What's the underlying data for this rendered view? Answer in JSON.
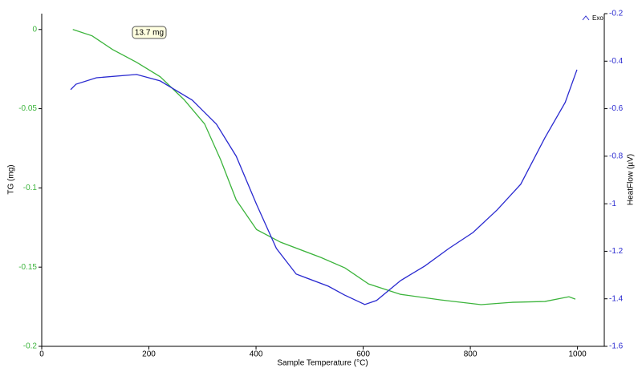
{
  "chart_data": {
    "type": "line",
    "x_label": "Sample Temperature (°C)",
    "y_label": "TG (mg)",
    "y2_label": "HeatFlow (µV)",
    "annotation": "13.7 mg",
    "exo_label": "Exo",
    "xlim": [
      0,
      1050
    ],
    "xticks": [
      0,
      200,
      400,
      600,
      800,
      1000
    ],
    "ylim": [
      -0.2,
      0.01
    ],
    "yticks": [
      0,
      -0.05,
      -0.1,
      -0.15,
      -0.2
    ],
    "y2lim": [
      -1.6,
      -0.2
    ],
    "y2ticks": [
      -0.2,
      -0.4,
      -0.6,
      -0.8,
      -1,
      -1.2,
      -1.4,
      -1.6
    ],
    "y_color": "#3cb43c",
    "y2_color": "#2a2ad0",
    "series": [
      {
        "color": "#3cb43c",
        "axis": "y",
        "x": [
          58,
          94,
          132,
          177,
          221,
          266,
          304,
          334,
          363,
          401,
          446,
          521,
          566,
          610,
          670,
          745,
          820,
          879,
          939,
          984,
          996
        ],
        "values": [
          0,
          -0.004,
          -0.0126,
          -0.0207,
          -0.0298,
          -0.0444,
          -0.0596,
          -0.0823,
          -0.1076,
          -0.1263,
          -0.1343,
          -0.1439,
          -0.1505,
          -0.1606,
          -0.1672,
          -0.1707,
          -0.1737,
          -0.1722,
          -0.1717,
          -0.1687,
          -0.1702
        ]
      },
      {
        "color": "#2a2ad0",
        "axis": "y2",
        "x": [
          54,
          64,
          102,
          177,
          221,
          281,
          326,
          363,
          401,
          438,
          475,
          535,
          565,
          603,
          625,
          670,
          715,
          760,
          805,
          850,
          894,
          939,
          977,
          999
        ],
        "values": [
          -0.52,
          -0.497,
          -0.47,
          -0.456,
          -0.483,
          -0.564,
          -0.665,
          -0.8,
          -1.003,
          -1.188,
          -1.296,
          -1.347,
          -1.384,
          -1.424,
          -1.407,
          -1.323,
          -1.262,
          -1.188,
          -1.121,
          -1.026,
          -0.918,
          -0.723,
          -0.574,
          -0.436
        ]
      }
    ]
  }
}
